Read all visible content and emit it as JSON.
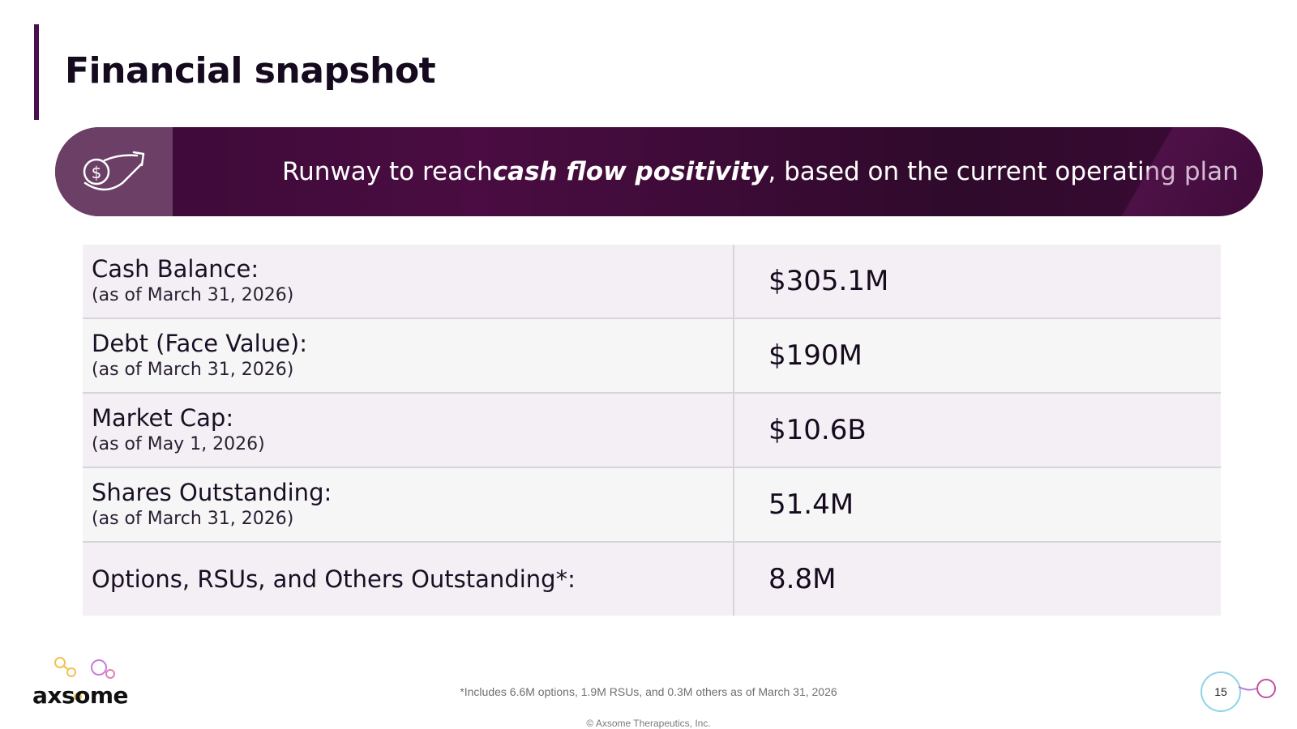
{
  "slide": {
    "title": "Financial snapshot",
    "page_number": "15"
  },
  "banner": {
    "icon": "money-growth-icon",
    "text_before": "Runway to reach ",
    "text_emphasis": "cash flow positivity",
    "text_after": ", based on the current operating plan"
  },
  "table": {
    "rows": [
      {
        "label": "Cash Balance:",
        "sublabel": "(as of March 31, 2026)",
        "value": "$305.1M"
      },
      {
        "label": "Debt (Face Value):",
        "sublabel": "(as of March 31, 2026)",
        "value": "$190M"
      },
      {
        "label": "Market Cap:",
        "sublabel": "(as of May 1, 2026)",
        "value": "$10.6B"
      },
      {
        "label": "Shares Outstanding:",
        "sublabel": "(as of March 31, 2026)",
        "value": "51.4M"
      },
      {
        "label": "Options, RSUs, and Others Outstanding*:",
        "sublabel": "",
        "value": "8.8M"
      }
    ]
  },
  "footer": {
    "logo_text": "axsome",
    "footnote": "*Includes 6.6M options, 1.9M RSUs, and 0.3M others as of March 31, 2026",
    "copyright": "© Axsome Therapeutics, Inc."
  },
  "colors": {
    "accent": "#4a0f4f",
    "banner_bg": "#3a0a35",
    "banner_icon_bg": "#6b3f66"
  }
}
